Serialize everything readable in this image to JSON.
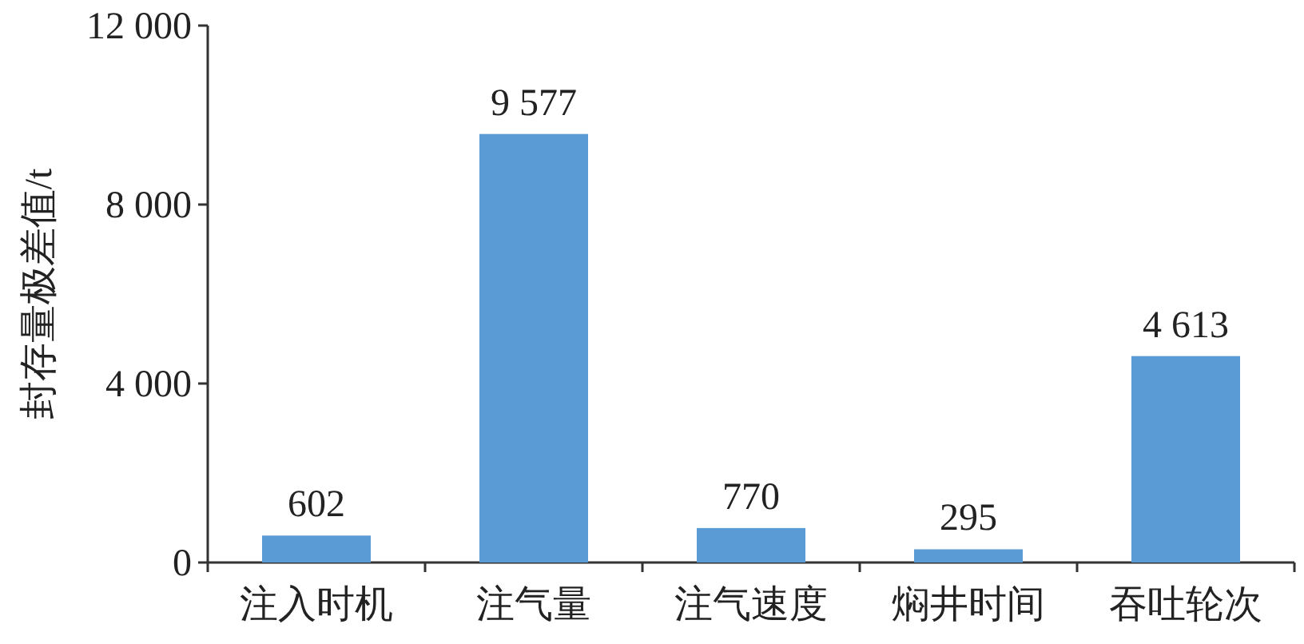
{
  "chart_data": {
    "type": "bar",
    "ylabel": "封存量极差值/t",
    "categories": [
      "注入时机",
      "注气量",
      "注气速度",
      "焖井时间",
      "吞吐轮次"
    ],
    "values": [
      602,
      9577,
      770,
      295,
      4613
    ],
    "value_labels": [
      "602",
      "9 577",
      "770",
      "295",
      "4 613"
    ],
    "color": "#5b9bd5",
    "ylim": [
      0,
      12000
    ],
    "yticks": [
      0,
      {
        "value": 4000,
        "label": "4 000"
      },
      {
        "value": 8000,
        "label": "8 000"
      },
      {
        "value": 12000,
        "label": "12 000"
      }
    ]
  }
}
